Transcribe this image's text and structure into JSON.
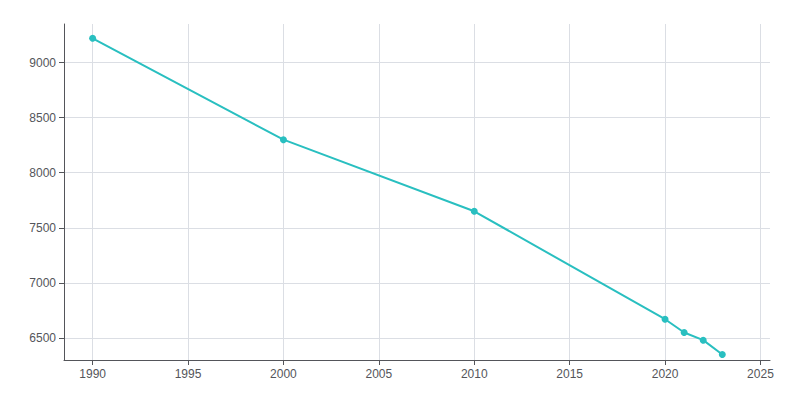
{
  "chart_data": {
    "type": "line",
    "x": [
      1990,
      2000,
      2010,
      2020,
      2021,
      2022,
      2023
    ],
    "values": [
      9220,
      8300,
      7650,
      6670,
      6550,
      6480,
      6350
    ],
    "color": "#29bfc0",
    "marker": "circle",
    "xlim": [
      1988.5,
      2025.5
    ],
    "ylim": [
      6300,
      9350
    ],
    "xticks": [
      1990,
      1995,
      2000,
      2005,
      2010,
      2015,
      2020,
      2025
    ],
    "yticks": [
      6500,
      7000,
      7500,
      8000,
      8500,
      9000
    ],
    "grid": true
  }
}
